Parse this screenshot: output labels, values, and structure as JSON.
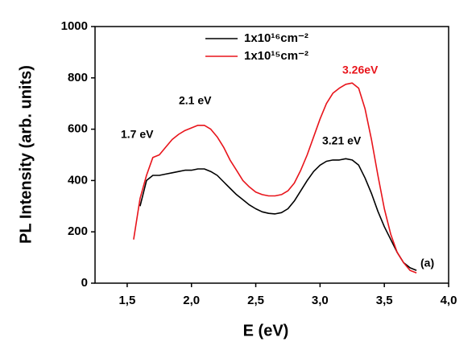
{
  "chart_data": {
    "type": "line",
    "x_label": "E (eV)",
    "y_label": "PL Intensity (arb. units)",
    "x": [
      1.55,
      1.6,
      1.65,
      1.7,
      1.75,
      1.8,
      1.85,
      1.9,
      1.95,
      2.0,
      2.05,
      2.1,
      2.15,
      2.2,
      2.25,
      2.3,
      2.35,
      2.4,
      2.45,
      2.5,
      2.55,
      2.6,
      2.65,
      2.7,
      2.75,
      2.8,
      2.85,
      2.9,
      2.95,
      3.0,
      3.05,
      3.1,
      3.15,
      3.2,
      3.25,
      3.3,
      3.35,
      3.4,
      3.45,
      3.5,
      3.55,
      3.6,
      3.65,
      3.7,
      3.75
    ],
    "series": [
      {
        "name": "1x10¹⁶cm⁻²",
        "color": "#000000",
        "values": [
          null,
          300,
          400,
          420,
          420,
          425,
          430,
          435,
          440,
          440,
          445,
          445,
          435,
          420,
          395,
          370,
          345,
          325,
          305,
          290,
          278,
          272,
          270,
          275,
          290,
          320,
          360,
          400,
          435,
          460,
          475,
          480,
          480,
          485,
          480,
          460,
          410,
          350,
          280,
          220,
          170,
          120,
          80,
          60,
          50
        ]
      },
      {
        "name": "1x10¹⁵cm⁻²",
        "color": "#e8141b",
        "values": [
          170,
          330,
          420,
          490,
          500,
          530,
          560,
          580,
          595,
          605,
          615,
          615,
          600,
          570,
          530,
          480,
          440,
          400,
          375,
          355,
          345,
          340,
          340,
          345,
          360,
          390,
          440,
          500,
          570,
          640,
          700,
          740,
          760,
          775,
          780,
          760,
          680,
          560,
          420,
          290,
          190,
          120,
          80,
          50,
          40
        ]
      }
    ],
    "annotations": [
      {
        "text": "1.7 eV",
        "color": "#000000"
      },
      {
        "text": "2.1 eV",
        "color": "#000000"
      },
      {
        "text": "3.21 eV",
        "color": "#000000"
      },
      {
        "text": "3.26eV",
        "color": "#e8141b"
      },
      {
        "text": "(a)",
        "color": "#000000"
      }
    ],
    "xlim": [
      1.25,
      4.0
    ],
    "xticks": [
      {
        "value": 1.5,
        "label": "1,5"
      },
      {
        "value": 2.0,
        "label": "2,0"
      },
      {
        "value": 2.5,
        "label": "2,5"
      },
      {
        "value": 3.0,
        "label": "3,0"
      },
      {
        "value": 3.5,
        "label": "3,5"
      },
      {
        "value": 4.0,
        "label": "4,0"
      }
    ],
    "ylim": [
      0,
      1000
    ],
    "yticks": [
      0,
      200,
      400,
      600,
      800,
      1000
    ],
    "grid": false,
    "legend": "top"
  }
}
